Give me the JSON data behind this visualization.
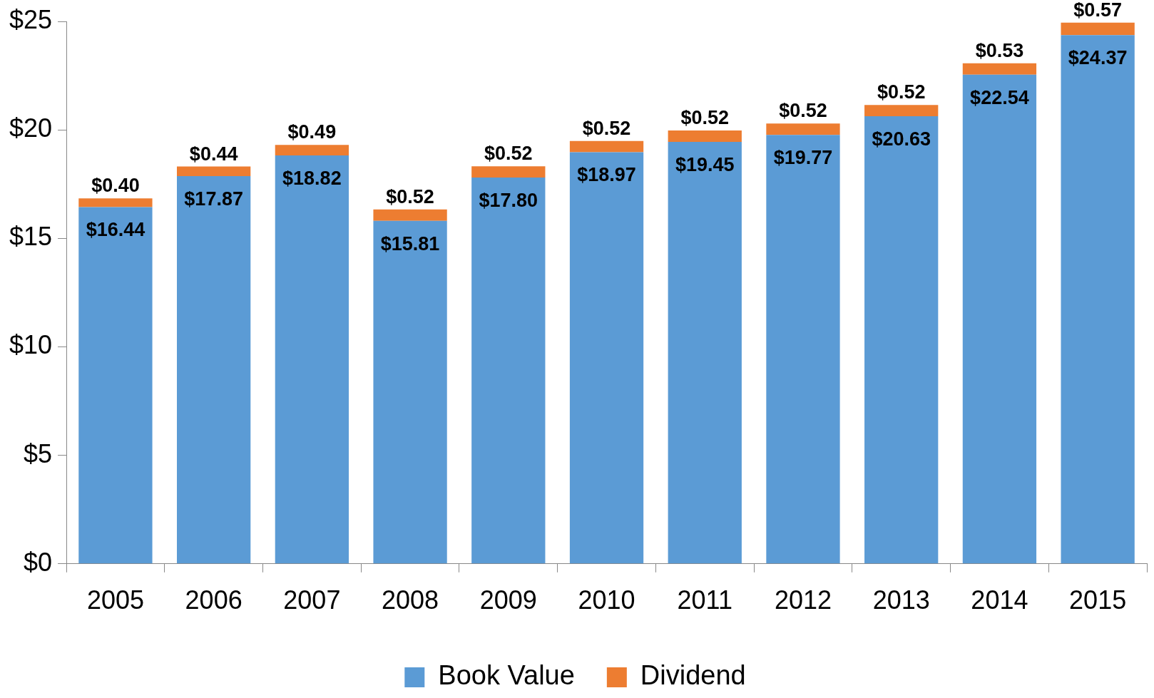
{
  "chart_data": {
    "type": "bar",
    "stacked": true,
    "legend": "bottom",
    "categories": [
      "2005",
      "2006",
      "2007",
      "2008",
      "2009",
      "2010",
      "2011",
      "2012",
      "2013",
      "2014",
      "2015"
    ],
    "ylim": [
      0,
      25
    ],
    "yticks": [
      {
        "value": 0,
        "label": "$0"
      },
      {
        "value": 5,
        "label": "$5"
      },
      {
        "value": 10,
        "label": "$10"
      },
      {
        "value": 15,
        "label": "$15"
      },
      {
        "value": 20,
        "label": "$20"
      },
      {
        "value": 25,
        "label": "$25"
      }
    ],
    "series": [
      {
        "name": "Book Value",
        "color": "#5b9bd5",
        "values": [
          16.44,
          17.87,
          18.82,
          15.81,
          17.8,
          18.97,
          19.45,
          19.77,
          20.63,
          22.54,
          24.37
        ],
        "value_labels": [
          "$16.44",
          "$17.87",
          "$18.82",
          "$15.81",
          "$17.80",
          "$18.97",
          "$19.45",
          "$19.77",
          "$20.63",
          "$22.54",
          "$24.37"
        ]
      },
      {
        "name": "Dividend",
        "color": "#ed7d31",
        "values": [
          0.4,
          0.44,
          0.49,
          0.52,
          0.52,
          0.52,
          0.52,
          0.52,
          0.52,
          0.53,
          0.57
        ],
        "value_labels": [
          "$0.40",
          "$0.44",
          "$0.49",
          "$0.52",
          "$0.52",
          "$0.52",
          "$0.52",
          "$0.52",
          "$0.52",
          "$0.53",
          "$0.57"
        ]
      }
    ]
  }
}
